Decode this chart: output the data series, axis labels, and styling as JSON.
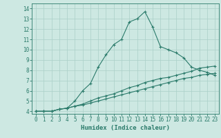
{
  "xlabel": "Humidex (Indice chaleur)",
  "bg_color": "#cde8e2",
  "grid_color": "#aacfc8",
  "line_color": "#2a7a6a",
  "xlim": [
    -0.5,
    23.5
  ],
  "ylim": [
    3.75,
    14.5
  ],
  "xticks": [
    0,
    1,
    2,
    3,
    4,
    5,
    6,
    7,
    8,
    9,
    10,
    11,
    12,
    13,
    14,
    15,
    16,
    17,
    18,
    19,
    20,
    21,
    22,
    23
  ],
  "yticks": [
    4,
    5,
    6,
    7,
    8,
    9,
    10,
    11,
    12,
    13,
    14
  ],
  "line1_x": [
    0,
    1,
    2,
    3,
    4,
    5,
    6,
    7,
    8,
    9,
    10,
    11,
    12,
    13,
    14,
    15,
    16,
    17,
    18,
    19,
    20,
    21,
    22,
    23
  ],
  "line1_y": [
    4.0,
    4.0,
    4.0,
    4.2,
    4.3,
    5.0,
    6.0,
    6.7,
    8.3,
    9.5,
    10.5,
    11.0,
    12.7,
    13.0,
    13.7,
    12.2,
    10.3,
    10.0,
    9.7,
    9.2,
    8.3,
    8.0,
    7.8,
    7.5
  ],
  "line2_x": [
    0,
    1,
    2,
    3,
    4,
    5,
    6,
    7,
    8,
    9,
    10,
    11,
    12,
    13,
    14,
    15,
    16,
    17,
    18,
    19,
    20,
    21,
    22,
    23
  ],
  "line2_y": [
    4.0,
    4.0,
    4.0,
    4.2,
    4.3,
    4.5,
    4.7,
    5.0,
    5.3,
    5.5,
    5.7,
    6.0,
    6.3,
    6.5,
    6.8,
    7.0,
    7.2,
    7.3,
    7.5,
    7.7,
    7.9,
    8.2,
    8.3,
    8.4
  ],
  "line3_x": [
    0,
    1,
    2,
    3,
    4,
    5,
    6,
    7,
    8,
    9,
    10,
    11,
    12,
    13,
    14,
    15,
    16,
    17,
    18,
    19,
    20,
    21,
    22,
    23
  ],
  "line3_y": [
    4.0,
    4.0,
    4.0,
    4.2,
    4.3,
    4.5,
    4.6,
    4.8,
    5.0,
    5.2,
    5.4,
    5.6,
    5.8,
    6.0,
    6.2,
    6.4,
    6.6,
    6.8,
    7.0,
    7.2,
    7.3,
    7.5,
    7.6,
    7.7
  ],
  "tick_fontsize": 5.5,
  "xlabel_fontsize": 6.5
}
